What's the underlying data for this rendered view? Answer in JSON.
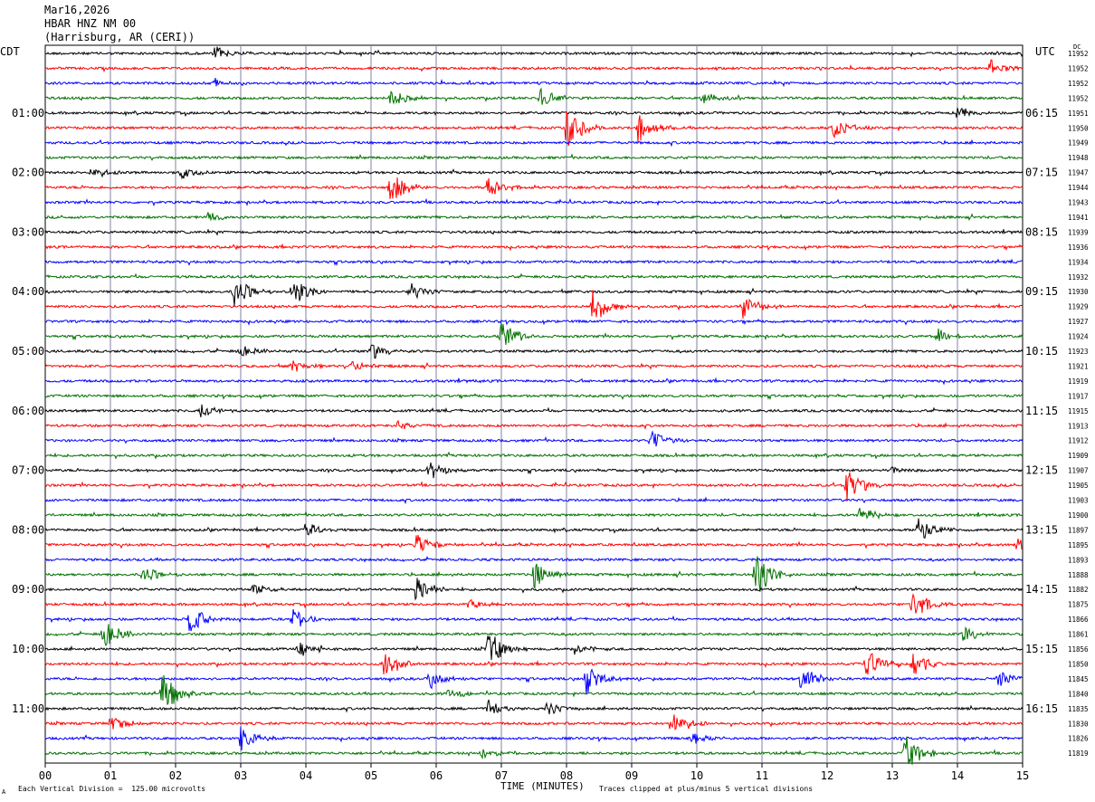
{
  "header": {
    "date": "Mar16,2026",
    "station": "HBAR HNZ NM 00",
    "location": "(Harrisburg, AR (CERI))"
  },
  "left_tz": "CDT",
  "right_tz": "UTC",
  "dc_label": "DC",
  "footer": {
    "scale_note": "Each Vertical Division =  125.00 microvolts",
    "clip_note": "Traces clipped at plus/minus 5 vertical divisions",
    "mark": "A"
  },
  "colors": {
    "trace_cycle": [
      "#000000",
      "#ff0000",
      "#0000ff",
      "#007000"
    ],
    "grid": "#8080a0",
    "frame": "#000000"
  },
  "chart_data": {
    "type": "line",
    "title": "",
    "xlabel": "TIME (MINUTES)",
    "x_ticks": [
      "00",
      "01",
      "02",
      "03",
      "04",
      "05",
      "06",
      "07",
      "08",
      "09",
      "10",
      "11",
      "12",
      "13",
      "14",
      "15"
    ],
    "xlim": [
      0,
      15
    ],
    "left_time_labels": [
      "01:00",
      "02:00",
      "03:00",
      "04:00",
      "05:00",
      "06:00",
      "07:00",
      "08:00",
      "09:00",
      "10:00",
      "11:00"
    ],
    "right_time_labels": [
      "06:15",
      "07:15",
      "08:15",
      "09:15",
      "10:15",
      "11:15",
      "12:15",
      "13:15",
      "14:15",
      "15:15",
      "16:15"
    ],
    "dc_offsets": [
      11952,
      11952,
      11952,
      11952,
      11951,
      11950,
      11949,
      11948,
      11947,
      11944,
      11943,
      11941,
      11939,
      11936,
      11934,
      11932,
      11930,
      11929,
      11927,
      11924,
      11923,
      11921,
      11919,
      11917,
      11915,
      11913,
      11912,
      11909,
      11907,
      11905,
      11903,
      11900,
      11897,
      11895,
      11893,
      11888,
      11882,
      11875,
      11866,
      11861,
      11856,
      11850,
      11845,
      11840,
      11835,
      11830,
      11826,
      11819
    ],
    "trace_count": 48,
    "events": [
      {
        "trace": 0,
        "t": 2.6,
        "amp": 0.6
      },
      {
        "trace": 1,
        "t": 14.5,
        "amp": 0.7
      },
      {
        "trace": 2,
        "t": 2.6,
        "amp": 0.4
      },
      {
        "trace": 3,
        "t": 5.3,
        "amp": 0.8
      },
      {
        "trace": 3,
        "t": 7.6,
        "amp": 0.8
      },
      {
        "trace": 3,
        "t": 10.1,
        "amp": 0.5
      },
      {
        "trace": 4,
        "t": 14.0,
        "amp": 0.5
      },
      {
        "trace": 5,
        "t": 8.0,
        "amp": 1.8
      },
      {
        "trace": 5,
        "t": 9.1,
        "amp": 1.2
      },
      {
        "trace": 5,
        "t": 12.1,
        "amp": 0.8
      },
      {
        "trace": 8,
        "t": 0.7,
        "amp": 0.6
      },
      {
        "trace": 8,
        "t": 2.1,
        "amp": 0.5
      },
      {
        "trace": 9,
        "t": 5.3,
        "amp": 1.3
      },
      {
        "trace": 9,
        "t": 6.8,
        "amp": 0.9
      },
      {
        "trace": 11,
        "t": 2.5,
        "amp": 0.4
      },
      {
        "trace": 16,
        "t": 2.9,
        "amp": 1.4
      },
      {
        "trace": 16,
        "t": 3.8,
        "amp": 1.3
      },
      {
        "trace": 16,
        "t": 5.6,
        "amp": 0.8
      },
      {
        "trace": 17,
        "t": 8.4,
        "amp": 1.5
      },
      {
        "trace": 17,
        "t": 10.7,
        "amp": 1.0
      },
      {
        "trace": 19,
        "t": 7.0,
        "amp": 1.3
      },
      {
        "trace": 19,
        "t": 13.7,
        "amp": 0.6
      },
      {
        "trace": 20,
        "t": 3.0,
        "amp": 0.5
      },
      {
        "trace": 20,
        "t": 5.0,
        "amp": 0.7
      },
      {
        "trace": 21,
        "t": 3.8,
        "amp": 0.5
      },
      {
        "trace": 21,
        "t": 4.7,
        "amp": 0.5
      },
      {
        "trace": 24,
        "t": 2.4,
        "amp": 0.6
      },
      {
        "trace": 25,
        "t": 5.4,
        "amp": 0.4
      },
      {
        "trace": 26,
        "t": 9.3,
        "amp": 0.8
      },
      {
        "trace": 28,
        "t": 5.9,
        "amp": 0.7
      },
      {
        "trace": 28,
        "t": 13.0,
        "amp": 0.4
      },
      {
        "trace": 29,
        "t": 12.3,
        "amp": 1.5
      },
      {
        "trace": 31,
        "t": 12.5,
        "amp": 0.7
      },
      {
        "trace": 32,
        "t": 4.0,
        "amp": 0.6
      },
      {
        "trace": 32,
        "t": 13.4,
        "amp": 1.1
      },
      {
        "trace": 33,
        "t": 5.7,
        "amp": 1.0
      },
      {
        "trace": 33,
        "t": 14.9,
        "amp": 0.6
      },
      {
        "trace": 35,
        "t": 1.5,
        "amp": 0.8
      },
      {
        "trace": 35,
        "t": 7.5,
        "amp": 1.2
      },
      {
        "trace": 35,
        "t": 10.9,
        "amp": 2.0
      },
      {
        "trace": 36,
        "t": 5.7,
        "amp": 1.2
      },
      {
        "trace": 36,
        "t": 3.2,
        "amp": 0.6
      },
      {
        "trace": 37,
        "t": 6.5,
        "amp": 0.5
      },
      {
        "trace": 37,
        "t": 13.3,
        "amp": 1.4
      },
      {
        "trace": 38,
        "t": 2.2,
        "amp": 1.3
      },
      {
        "trace": 38,
        "t": 3.8,
        "amp": 1.0
      },
      {
        "trace": 39,
        "t": 0.9,
        "amp": 1.2
      },
      {
        "trace": 39,
        "t": 14.1,
        "amp": 0.8
      },
      {
        "trace": 40,
        "t": 6.8,
        "amp": 1.5
      },
      {
        "trace": 40,
        "t": 3.9,
        "amp": 0.6
      },
      {
        "trace": 40,
        "t": 8.1,
        "amp": 0.6
      },
      {
        "trace": 41,
        "t": 5.2,
        "amp": 1.3
      },
      {
        "trace": 41,
        "t": 12.6,
        "amp": 1.2
      },
      {
        "trace": 41,
        "t": 13.3,
        "amp": 1.3
      },
      {
        "trace": 42,
        "t": 5.9,
        "amp": 0.9
      },
      {
        "trace": 42,
        "t": 8.3,
        "amp": 1.3
      },
      {
        "trace": 42,
        "t": 11.6,
        "amp": 1.2
      },
      {
        "trace": 42,
        "t": 14.6,
        "amp": 0.9
      },
      {
        "trace": 43,
        "t": 1.8,
        "amp": 1.8
      },
      {
        "trace": 43,
        "t": 6.2,
        "amp": 0.5
      },
      {
        "trace": 44,
        "t": 6.8,
        "amp": 0.7
      },
      {
        "trace": 44,
        "t": 7.7,
        "amp": 0.6
      },
      {
        "trace": 45,
        "t": 1.0,
        "amp": 0.7
      },
      {
        "trace": 45,
        "t": 9.6,
        "amp": 1.4
      },
      {
        "trace": 46,
        "t": 3.0,
        "amp": 1.1
      },
      {
        "trace": 46,
        "t": 9.9,
        "amp": 0.6
      },
      {
        "trace": 47,
        "t": 13.2,
        "amp": 1.6
      },
      {
        "trace": 47,
        "t": 6.7,
        "amp": 0.5
      }
    ]
  }
}
